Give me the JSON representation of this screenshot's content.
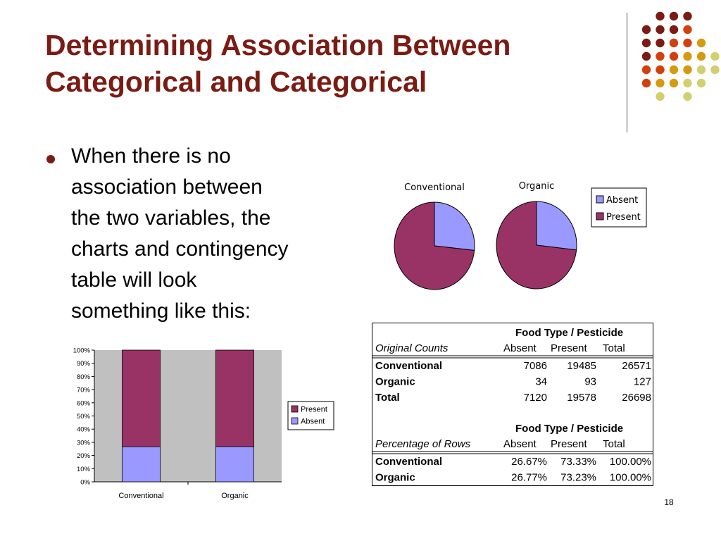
{
  "slide": {
    "title_line1": "Determining Association Between",
    "title_line2": "Categorical and Categorical",
    "bullet": "When there is no\nassociation between\nthe two variables, the\ncharts and contingency\ntable will look\nsomething like this:",
    "page_number": "18"
  },
  "colors": {
    "title": "#7a1c14",
    "absent": "#9999ff",
    "present": "#993366",
    "plot_bg": "#c0c0c0",
    "dot_palette": [
      "#7a1c14",
      "#d2400d",
      "#d49a10",
      "#d1d06e"
    ]
  },
  "chart_data": [
    {
      "type": "pie",
      "title": "Conventional",
      "categories": [
        "Absent",
        "Present"
      ],
      "values": [
        26.67,
        73.33
      ],
      "legend": [
        "Absent",
        "Present"
      ],
      "legend_position": "right"
    },
    {
      "type": "pie",
      "title": "Organic",
      "categories": [
        "Absent",
        "Present"
      ],
      "values": [
        26.77,
        73.23
      ]
    },
    {
      "type": "bar",
      "stacked": "percent",
      "categories": [
        "Conventional",
        "Organic"
      ],
      "series": [
        {
          "name": "Absent",
          "values": [
            26.67,
            26.77
          ]
        },
        {
          "name": "Present",
          "values": [
            73.33,
            73.23
          ]
        }
      ],
      "ylim": [
        0,
        100
      ],
      "yticks": [
        "0%",
        "10%",
        "20%",
        "30%",
        "40%",
        "50%",
        "60%",
        "70%",
        "80%",
        "90%",
        "100%"
      ],
      "legend": [
        "Present",
        "Absent"
      ],
      "legend_position": "right",
      "grid": false
    },
    {
      "type": "table",
      "header_group": "Food Type / Pesticide",
      "sections": [
        {
          "label": "Original Counts",
          "columns": [
            "Absent",
            "Present",
            "Total"
          ],
          "rows": [
            {
              "name": "Conventional",
              "cells": [
                "7086",
                "19485",
                "26571"
              ]
            },
            {
              "name": "Organic",
              "cells": [
                "34",
                "93",
                "127"
              ]
            },
            {
              "name": "Total",
              "cells": [
                "7120",
                "19578",
                "26698"
              ]
            }
          ]
        },
        {
          "label": "Percentage of Rows",
          "columns": [
            "Absent",
            "Present",
            "Total"
          ],
          "rows": [
            {
              "name": "Conventional",
              "cells": [
                "26.67%",
                "73.33%",
                "100.00%"
              ]
            },
            {
              "name": "Organic",
              "cells": [
                "26.77%",
                "73.23%",
                "100.00%"
              ]
            }
          ]
        }
      ]
    }
  ]
}
